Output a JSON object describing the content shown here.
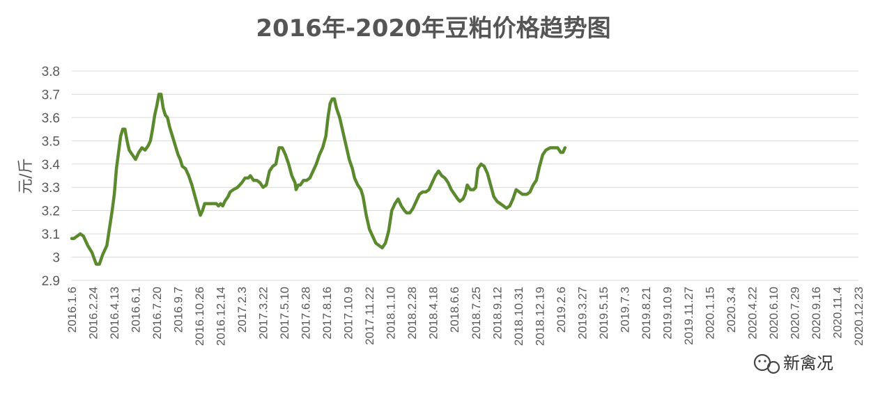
{
  "chart_data": {
    "type": "line",
    "title": "2016年-2020年豆粕价格趋势图",
    "ylabel": "元/斤",
    "xlabel": "",
    "ylim": [
      2.9,
      3.8
    ],
    "yticks": [
      "2.9",
      "3",
      "3.1",
      "3.2",
      "3.3",
      "3.4",
      "3.5",
      "3.6",
      "3.7",
      "3.8"
    ],
    "grid": "horizontal",
    "legend": "none",
    "categories": [
      "2016.1.6",
      "2016.2.24",
      "2016.4.13",
      "2016.6.1",
      "2016.7.20",
      "2016.9.7",
      "2016.10.26",
      "2016.12.14",
      "2017.2.3",
      "2017.3.22",
      "2017.5.10",
      "2017.6.28",
      "2017.8.16",
      "2017.10.9",
      "2017.11.22",
      "2018.1.10",
      "2018.2.28",
      "2018.4.18",
      "2018.6.6",
      "2018.7.25",
      "2018.9.12",
      "2018.10.31",
      "2018.12.19",
      "2019.2.6",
      "2019.3.27",
      "2019.5.15",
      "2019.7.3",
      "2019.8.21",
      "2019.10.9",
      "2019.11.27",
      "2020.1.15",
      "2020.3.4",
      "2020.4.22",
      "2020.6.10",
      "2020.7.29",
      "2020.9.16",
      "2020.11.4",
      "2020.12.23"
    ],
    "series": [
      {
        "color": "#5b8a2e",
        "points": [
          [
            0,
            3.08
          ],
          [
            0.1,
            3.08
          ],
          [
            0.25,
            3.09
          ],
          [
            0.4,
            3.1
          ],
          [
            0.55,
            3.09
          ],
          [
            0.75,
            3.05
          ],
          [
            0.95,
            3.02
          ],
          [
            1.15,
            2.97
          ],
          [
            1.3,
            2.97
          ],
          [
            1.45,
            3.01
          ],
          [
            1.65,
            3.05
          ],
          [
            1.75,
            3.11
          ],
          [
            1.9,
            3.2
          ],
          [
            2.0,
            3.27
          ],
          [
            2.1,
            3.38
          ],
          [
            2.2,
            3.45
          ],
          [
            2.3,
            3.52
          ],
          [
            2.4,
            3.55
          ],
          [
            2.5,
            3.55
          ],
          [
            2.6,
            3.5
          ],
          [
            2.7,
            3.46
          ],
          [
            2.85,
            3.44
          ],
          [
            3.0,
            3.42
          ],
          [
            3.15,
            3.45
          ],
          [
            3.3,
            3.47
          ],
          [
            3.45,
            3.46
          ],
          [
            3.6,
            3.48
          ],
          [
            3.7,
            3.5
          ],
          [
            3.8,
            3.55
          ],
          [
            3.9,
            3.61
          ],
          [
            4.0,
            3.65
          ],
          [
            4.1,
            3.7
          ],
          [
            4.2,
            3.7
          ],
          [
            4.3,
            3.64
          ],
          [
            4.4,
            3.61
          ],
          [
            4.5,
            3.6
          ],
          [
            4.6,
            3.56
          ],
          [
            4.7,
            3.53
          ],
          [
            4.8,
            3.5
          ],
          [
            4.9,
            3.47
          ],
          [
            5.0,
            3.44
          ],
          [
            5.1,
            3.42
          ],
          [
            5.2,
            3.39
          ],
          [
            5.35,
            3.38
          ],
          [
            5.5,
            3.35
          ],
          [
            5.65,
            3.31
          ],
          [
            5.8,
            3.26
          ],
          [
            5.95,
            3.21
          ],
          [
            6.05,
            3.18
          ],
          [
            6.15,
            3.2
          ],
          [
            6.25,
            3.23
          ],
          [
            6.4,
            3.23
          ],
          [
            6.6,
            3.23
          ],
          [
            6.8,
            3.23
          ],
          [
            6.9,
            3.22
          ],
          [
            7.0,
            3.23
          ],
          [
            7.1,
            3.22
          ],
          [
            7.2,
            3.24
          ],
          [
            7.35,
            3.26
          ],
          [
            7.45,
            3.28
          ],
          [
            7.6,
            3.29
          ],
          [
            7.8,
            3.3
          ],
          [
            8.0,
            3.32
          ],
          [
            8.15,
            3.34
          ],
          [
            8.3,
            3.34
          ],
          [
            8.4,
            3.35
          ],
          [
            8.55,
            3.33
          ],
          [
            8.7,
            3.33
          ],
          [
            8.85,
            3.32
          ],
          [
            9.0,
            3.3
          ],
          [
            9.15,
            3.31
          ],
          [
            9.3,
            3.37
          ],
          [
            9.45,
            3.39
          ],
          [
            9.6,
            3.4
          ],
          [
            9.75,
            3.47
          ],
          [
            9.9,
            3.47
          ],
          [
            10.05,
            3.44
          ],
          [
            10.2,
            3.4
          ],
          [
            10.35,
            3.35
          ],
          [
            10.5,
            3.32
          ],
          [
            10.55,
            3.29
          ],
          [
            10.65,
            3.31
          ],
          [
            10.75,
            3.31
          ],
          [
            10.9,
            3.33
          ],
          [
            11.05,
            3.33
          ],
          [
            11.2,
            3.34
          ],
          [
            11.35,
            3.37
          ],
          [
            11.5,
            3.4
          ],
          [
            11.65,
            3.44
          ],
          [
            11.8,
            3.47
          ],
          [
            11.95,
            3.52
          ],
          [
            12.05,
            3.6
          ],
          [
            12.15,
            3.66
          ],
          [
            12.25,
            3.68
          ],
          [
            12.35,
            3.68
          ],
          [
            12.45,
            3.64
          ],
          [
            12.6,
            3.6
          ],
          [
            12.75,
            3.54
          ],
          [
            12.9,
            3.48
          ],
          [
            13.05,
            3.42
          ],
          [
            13.2,
            3.38
          ],
          [
            13.3,
            3.34
          ],
          [
            13.45,
            3.31
          ],
          [
            13.6,
            3.29
          ],
          [
            13.7,
            3.26
          ],
          [
            13.85,
            3.18
          ],
          [
            14.0,
            3.12
          ],
          [
            14.15,
            3.09
          ],
          [
            14.3,
            3.06
          ],
          [
            14.45,
            3.05
          ],
          [
            14.6,
            3.04
          ],
          [
            14.75,
            3.06
          ],
          [
            14.9,
            3.11
          ],
          [
            15.05,
            3.2
          ],
          [
            15.2,
            3.23
          ],
          [
            15.35,
            3.25
          ],
          [
            15.5,
            3.22
          ],
          [
            15.65,
            3.2
          ],
          [
            15.75,
            3.19
          ],
          [
            15.9,
            3.19
          ],
          [
            16.05,
            3.21
          ],
          [
            16.2,
            3.24
          ],
          [
            16.35,
            3.27
          ],
          [
            16.5,
            3.28
          ],
          [
            16.65,
            3.28
          ],
          [
            16.8,
            3.29
          ],
          [
            16.95,
            3.32
          ],
          [
            17.1,
            3.35
          ],
          [
            17.25,
            3.37
          ],
          [
            17.4,
            3.35
          ],
          [
            17.55,
            3.34
          ],
          [
            17.7,
            3.32
          ],
          [
            17.85,
            3.29
          ],
          [
            18.0,
            3.27
          ],
          [
            18.15,
            3.25
          ],
          [
            18.25,
            3.24
          ],
          [
            18.4,
            3.25
          ],
          [
            18.5,
            3.27
          ],
          [
            18.6,
            3.31
          ],
          [
            18.75,
            3.29
          ],
          [
            18.9,
            3.29
          ],
          [
            19.0,
            3.3
          ],
          [
            19.1,
            3.38
          ],
          [
            19.25,
            3.4
          ],
          [
            19.4,
            3.39
          ],
          [
            19.55,
            3.36
          ],
          [
            19.7,
            3.31
          ],
          [
            19.85,
            3.26
          ],
          [
            20.0,
            3.24
          ],
          [
            20.15,
            3.23
          ],
          [
            20.3,
            3.22
          ],
          [
            20.45,
            3.21
          ],
          [
            20.6,
            3.22
          ],
          [
            20.75,
            3.25
          ],
          [
            20.9,
            3.29
          ],
          [
            21.05,
            3.28
          ],
          [
            21.2,
            3.27
          ],
          [
            21.4,
            3.27
          ],
          [
            21.55,
            3.28
          ],
          [
            21.7,
            3.31
          ],
          [
            21.85,
            3.33
          ],
          [
            22.0,
            3.39
          ],
          [
            22.15,
            3.44
          ],
          [
            22.3,
            3.46
          ],
          [
            22.5,
            3.47
          ],
          [
            22.7,
            3.47
          ],
          [
            22.85,
            3.47
          ],
          [
            23.0,
            3.45
          ],
          [
            23.1,
            3.45
          ],
          [
            23.2,
            3.47
          ]
        ]
      }
    ]
  },
  "watermark": {
    "text": "新禽况",
    "icon": "wechat-bubble-icon"
  }
}
